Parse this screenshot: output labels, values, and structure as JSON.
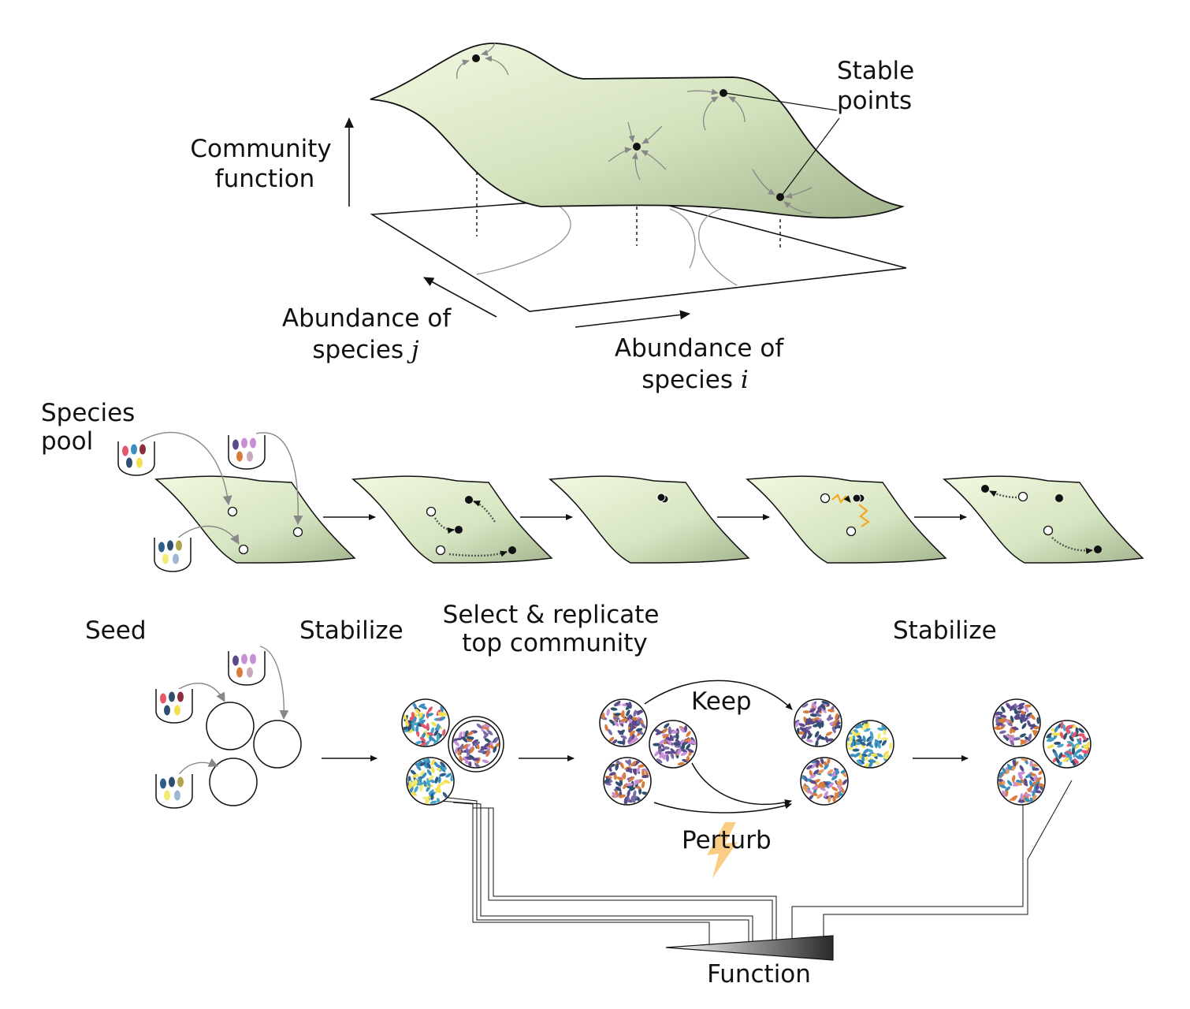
{
  "landscape": {
    "y_axis_label": [
      "Community",
      "function"
    ],
    "stable_label": [
      "Stable",
      "points"
    ],
    "axis_j": {
      "line1": "Abundance of",
      "line2_prefix": "species ",
      "var": "j"
    },
    "axis_i": {
      "line1": "Abundance of",
      "line2_prefix": "species ",
      "var": "i"
    }
  },
  "steps": {
    "species_pool": [
      "Species",
      "pool"
    ],
    "seed": "Seed",
    "stabilize_1": "Stabilize",
    "select": [
      "Select & replicate",
      "top community"
    ],
    "stabilize_2": "Stabilize"
  },
  "workflow": {
    "keep": "Keep",
    "perturb": "Perturb",
    "function": "Function"
  },
  "colors": {
    "surface_light": "#eef6dc",
    "surface_dark": "#a8b894",
    "perturb": "#f5a623",
    "microbes": [
      "#e8546b",
      "#3b8fbf",
      "#8b2e3a",
      "#2f4f6f",
      "#f4e04d",
      "#5b4a8b",
      "#c98fd6",
      "#d97b3a",
      "#c9a8b8",
      "#2b5f8a",
      "#b0a34a",
      "#f2ec74",
      "#9db6d6",
      "#7b6aa8",
      "#4aa3c8"
    ]
  }
}
